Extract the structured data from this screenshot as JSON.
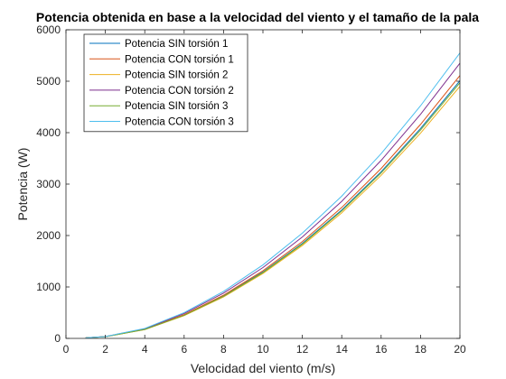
{
  "chart_data": {
    "type": "line",
    "title": "Potencia obtenida en base a la velocidad del viento y el tamaño de la pala",
    "xlabel": "Velocidad del viento (m/s)",
    "ylabel": "Potencia (W)",
    "xlim": [
      0,
      20
    ],
    "ylim": [
      0,
      6000
    ],
    "xticks": [
      0,
      2,
      4,
      6,
      8,
      10,
      12,
      14,
      16,
      18,
      20
    ],
    "yticks": [
      0,
      1000,
      2000,
      3000,
      4000,
      5000,
      6000
    ],
    "grid": false,
    "legend_position": "top-left",
    "x_range_of_series": [
      1,
      20
    ],
    "series": [
      {
        "name": "Potencia SIN torsión 1",
        "color": "#0072BD",
        "values_at_x": {
          "1": 10,
          "2": 33,
          "4": 175,
          "6": 452,
          "8": 824,
          "10": 1290,
          "12": 1846,
          "14": 2496,
          "16": 3240,
          "18": 4080,
          "20": 5010
        }
      },
      {
        "name": "Potencia CON torsión 1",
        "color": "#D95319",
        "values_at_x": {
          "1": 10,
          "2": 34,
          "4": 178,
          "6": 461,
          "8": 840,
          "10": 1315,
          "12": 1882,
          "14": 2545,
          "16": 3303,
          "18": 4160,
          "20": 5110
        }
      },
      {
        "name": "Potencia SIN torsión 2",
        "color": "#EDB120",
        "values_at_x": {
          "1": 10,
          "2": 33,
          "4": 171,
          "6": 442,
          "8": 806,
          "10": 1262,
          "12": 1806,
          "14": 2441,
          "16": 3170,
          "18": 3990,
          "20": 4900
        }
      },
      {
        "name": "Potencia CON torsión 2",
        "color": "#7E2F8E",
        "values_at_x": {
          "1": 11,
          "2": 35,
          "4": 187,
          "6": 483,
          "8": 880,
          "10": 1377,
          "12": 1971,
          "14": 2665,
          "16": 3460,
          "18": 4357,
          "20": 5350
        }
      },
      {
        "name": "Potencia SIN torsión 3",
        "color": "#77AC30",
        "values_at_x": {
          "1": 10,
          "2": 33,
          "4": 174,
          "6": 449,
          "8": 818,
          "10": 1280,
          "12": 1832,
          "14": 2477,
          "16": 3216,
          "18": 4049,
          "20": 4970
        }
      },
      {
        "name": "Potencia CON torsión 3",
        "color": "#4DBEEE",
        "values_at_x": {
          "1": 11,
          "2": 36,
          "4": 194,
          "6": 501,
          "8": 913,
          "10": 1429,
          "12": 2046,
          "14": 2766,
          "16": 3591,
          "18": 4522,
          "20": 5550
        }
      }
    ]
  }
}
